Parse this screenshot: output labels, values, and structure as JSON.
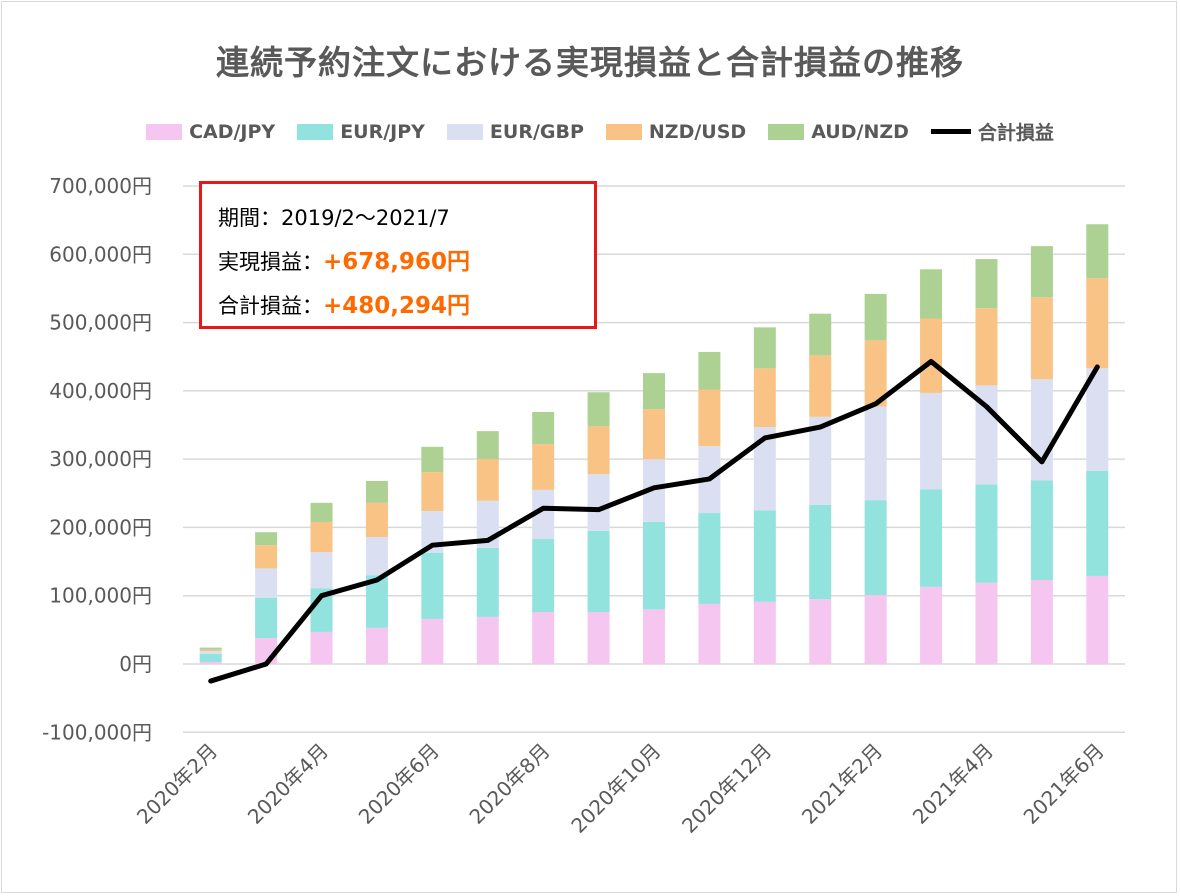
{
  "chart_data": {
    "type": "bar",
    "stacked": true,
    "title": "連続予約注文における実現損益と合計損益の推移",
    "categories": [
      "2020年2月",
      "2020年3月",
      "2020年4月",
      "2020年5月",
      "2020年6月",
      "2020年7月",
      "2020年8月",
      "2020年9月",
      "2020年10月",
      "2020年11月",
      "2020年12月",
      "2021年1月",
      "2021年2月",
      "2021年3月",
      "2021年4月",
      "2021年5月",
      "2021年6月"
    ],
    "x_tick_labels": [
      "2020年2月",
      "2020年4月",
      "2020年6月",
      "2020年8月",
      "2020年10月",
      "2020年12月",
      "2021年2月",
      "2021年4月",
      "2021年6月"
    ],
    "y_tick_labels": [
      "700,000円",
      "600,000円",
      "500,000円",
      "400,000円",
      "300,000円",
      "200,000円",
      "100,000円",
      "0円",
      "-100,000円"
    ],
    "ylim": [
      -100000,
      700000
    ],
    "grid": true,
    "legend_position": "top",
    "series": [
      {
        "name": "CAD/JPY",
        "color": "#f5c6ef",
        "values": [
          3000,
          38000,
          47000,
          53000,
          66000,
          69000,
          76000,
          76000,
          80000,
          88000,
          91000,
          95000,
          101000,
          113000,
          119000,
          123000,
          129000
        ]
      },
      {
        "name": "EUR/JPY",
        "color": "#92e2de",
        "values": [
          12000,
          59000,
          64000,
          77000,
          97000,
          101000,
          107000,
          119000,
          128000,
          133000,
          134000,
          138000,
          139000,
          143000,
          144000,
          146000,
          154000
        ]
      },
      {
        "name": "EUR/GBP",
        "color": "#dae0f2",
        "values": [
          4000,
          43000,
          53000,
          56000,
          61000,
          69000,
          72000,
          83000,
          92000,
          98000,
          122000,
          129000,
          137000,
          141000,
          145000,
          148000,
          150000
        ]
      },
      {
        "name": "NZD/USD",
        "color": "#f8c384",
        "values": [
          2000,
          34000,
          44000,
          50000,
          57000,
          61000,
          67000,
          70000,
          73000,
          83000,
          86000,
          90000,
          97000,
          109000,
          113000,
          120000,
          132000
        ]
      },
      {
        "name": "AUD/NZD",
        "color": "#add193",
        "values": [
          3000,
          19000,
          28000,
          32000,
          37000,
          41000,
          47000,
          50000,
          53000,
          55000,
          60000,
          61000,
          68000,
          72000,
          72000,
          75000,
          79000
        ]
      }
    ],
    "line_series": {
      "name": "合計損益",
      "color": "#000000",
      "values": [
        -25000,
        0,
        100000,
        123000,
        174000,
        181000,
        228000,
        226000,
        258000,
        271000,
        331000,
        347000,
        381000,
        443000,
        377000,
        296000,
        435000
      ]
    },
    "negative_tick_color": "#0000ff"
  },
  "info_box": {
    "period_label": "期間：",
    "period_value": "2019/2～2021/7",
    "realized_label": "実現損益：",
    "realized_value": "+678,960円",
    "total_label": "合計損益：",
    "total_value": "+480,294円",
    "border_color": "#e81818",
    "value_color": "#ff6a00"
  }
}
